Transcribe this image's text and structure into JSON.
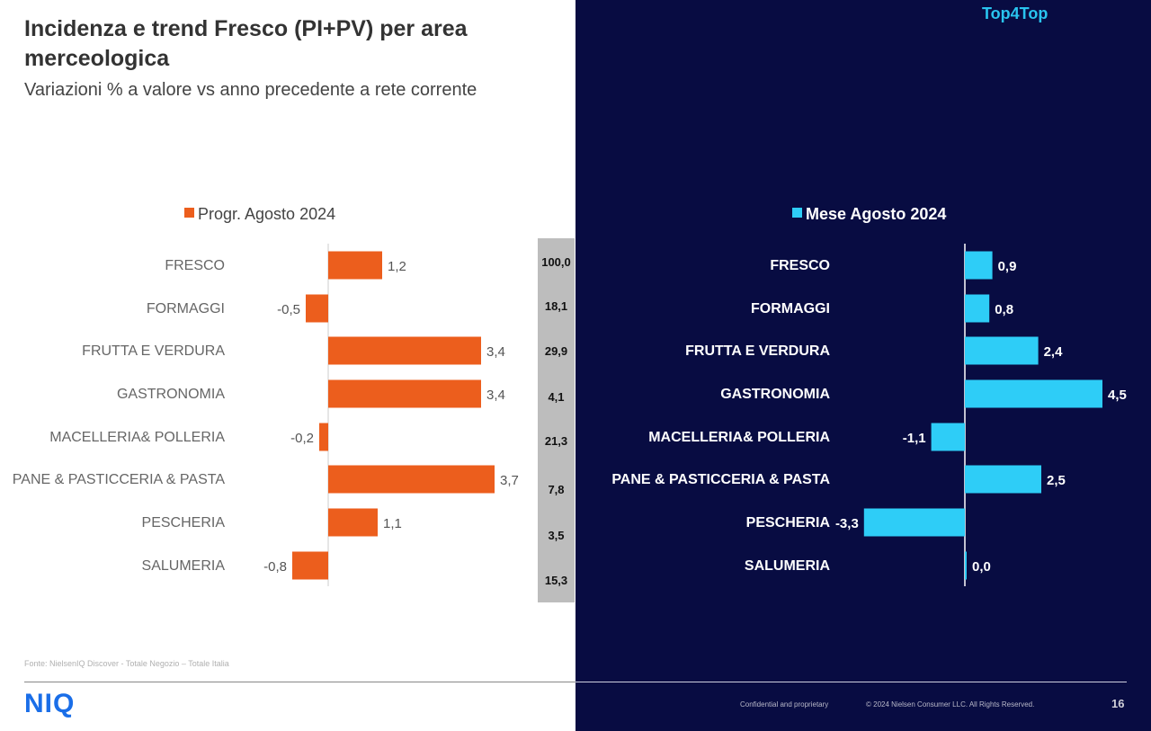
{
  "header": {
    "title": "Incidenza e trend Fresco (PI+PV) per area merceologica",
    "subtitle": "Variazioni % a valore vs anno precedente a rete corrente",
    "brand_tag": "Top4Top"
  },
  "colors": {
    "left_bar": "#ec5e1d",
    "right_bar": "#2ecdf7",
    "right_background": "#080c42",
    "share_column": "#bdbdbd",
    "logo": "#1a6ee8"
  },
  "chart_data": [
    {
      "type": "bar",
      "orientation": "horizontal",
      "categories": [
        "FRESCO",
        "FORMAGGI",
        "FRUTTA E VERDURA",
        "GASTRONOMIA",
        "MACELLERIA& POLLERIA",
        "PANE & PASTICCERIA & PASTA",
        "PESCHERIA",
        "SALUMERIA"
      ],
      "series": [
        {
          "name": "Progr. Agosto 2024",
          "values": [
            1.2,
            -0.5,
            3.4,
            3.4,
            -0.2,
            3.7,
            1.1,
            -0.8
          ],
          "labels": [
            "1,2",
            "-0,5",
            "3,4",
            "3,4",
            "-0,2",
            "3,7",
            "1,1",
            "-0,8"
          ]
        }
      ],
      "legend": "top",
      "grid": false
    },
    {
      "type": "bar",
      "orientation": "horizontal",
      "categories": [
        "FRESCO",
        "FORMAGGI",
        "FRUTTA E VERDURA",
        "GASTRONOMIA",
        "MACELLERIA& POLLERIA",
        "PANE & PASTICCERIA & PASTA",
        "PESCHERIA",
        "SALUMERIA"
      ],
      "series": [
        {
          "name": "Mese Agosto 2024",
          "values": [
            0.9,
            0.8,
            2.4,
            4.5,
            -1.1,
            2.5,
            -3.3,
            0.0
          ],
          "labels": [
            "0,9",
            "0,8",
            "2,4",
            "4,5",
            "-1,1",
            "2,5",
            "-3,3",
            "0,0"
          ]
        }
      ],
      "legend": "top",
      "grid": false
    }
  ],
  "shares": [
    "100,0",
    "18,1",
    "29,9",
    "4,1",
    "21,3",
    "7,8",
    "3,5",
    "15,3"
  ],
  "footer": {
    "source": "Fonte: NielsenIQ Discover - Totale Negozio – Totale Italia",
    "logo": "NIQ",
    "confidential": "Confidential and proprietary",
    "copyright": "© 2024 Nielsen Consumer LLC. All Rights Reserved.",
    "page": "16"
  }
}
